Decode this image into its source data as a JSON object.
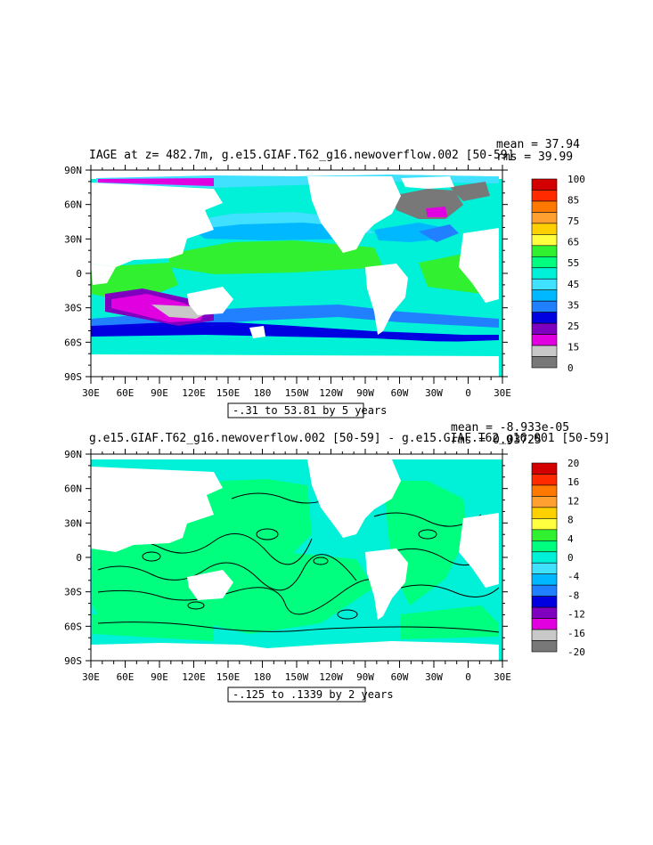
{
  "colors": {
    "ocean_field": "#00ff7f",
    "diff_field": "#00f0e0",
    "land": "#ffffff",
    "contour": "#000000"
  },
  "panels": [
    {
      "title": "IAGE at z= 482.7m, g.e15.GIAF.T62_g16.newoverflow.002 [50-59]",
      "mean_label": "mean = 37.94",
      "rms_label": "rms = 39.99",
      "contour_info": "-.31 to 53.81 by 5 years",
      "lat_ticks": [
        "90N",
        "60N",
        "30N",
        "0",
        "30S",
        "60S",
        "90S"
      ],
      "lon_ticks": [
        "30E",
        "60E",
        "90E",
        "120E",
        "150E",
        "180",
        "150W",
        "120W",
        "90W",
        "60W",
        "30W",
        "0",
        "30E"
      ],
      "colorbar": {
        "labels": [
          "100",
          "85",
          "75",
          "65",
          "55",
          "45",
          "35",
          "25",
          "15",
          "0"
        ],
        "colors": [
          "#d40000",
          "#ff2a00",
          "#ff7800",
          "#ffa030",
          "#ffd000",
          "#ffff40",
          "#30f030",
          "#00ff7f",
          "#00f0d8",
          "#40e0ff",
          "#00b8ff",
          "#2080ff",
          "#0000e0",
          "#8000c0",
          "#e000e0",
          "#c8c8c8",
          "#787878"
        ]
      }
    },
    {
      "title": "g.e15.GIAF.T62_g16.newoverflow.002 [50-59] - g.e15.GIAF.T62_g16.001 [50-59]",
      "mean_label": "mean = -8.933e-05",
      "rms_label": "rms = 0.03725",
      "contour_info": "-.125 to .1339 by 2 years",
      "lat_ticks": [
        "90N",
        "60N",
        "30N",
        "0",
        "30S",
        "60S",
        "90S"
      ],
      "lon_ticks": [
        "30E",
        "60E",
        "90E",
        "120E",
        "150E",
        "180",
        "150W",
        "120W",
        "90W",
        "60W",
        "30W",
        "0",
        "30E"
      ],
      "colorbar": {
        "labels": [
          "20",
          "16",
          "12",
          "8",
          "4",
          "0",
          "-4",
          "-8",
          "-12",
          "-16",
          "-20"
        ],
        "colors": [
          "#d40000",
          "#ff2a00",
          "#ff7800",
          "#ffa030",
          "#ffd000",
          "#ffff40",
          "#30f030",
          "#00ff7f",
          "#00f0d8",
          "#40e0ff",
          "#00b8ff",
          "#2080ff",
          "#0000e0",
          "#8000c0",
          "#e000e0",
          "#c8c8c8",
          "#787878"
        ]
      }
    }
  ]
}
